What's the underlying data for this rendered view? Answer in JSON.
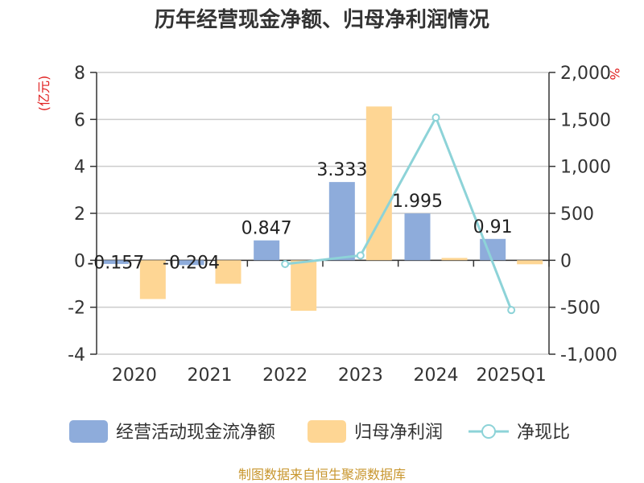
{
  "title": "历年经营现金净额、归母净利润情况",
  "source": "制图数据来自恒生聚源数据库",
  "chart_data": {
    "type": "bar",
    "categories": [
      "2020",
      "2021",
      "2022",
      "2023",
      "2024",
      "2025Q1"
    ],
    "series": [
      {
        "name": "经营活动现金流净额",
        "kind": "bar",
        "axis": "left",
        "color": "#8eacdb",
        "values": [
          -0.157,
          -0.204,
          0.847,
          3.333,
          1.995,
          0.91
        ],
        "labels": [
          "-0.157",
          "-0.204",
          "0.847",
          "3.333",
          "1.995",
          "0.91"
        ]
      },
      {
        "name": "归母净利润",
        "kind": "bar",
        "axis": "left",
        "color": "#fed694",
        "values": [
          -1.65,
          -1.0,
          -2.15,
          6.55,
          0.1,
          -0.17
        ]
      },
      {
        "name": "净现比",
        "kind": "line",
        "axis": "right",
        "color": "#8dd3d8",
        "values": [
          null,
          null,
          -40,
          51,
          1520,
          -530
        ]
      }
    ],
    "left_axis": {
      "unit": "(亿元)",
      "ylim": [
        -4,
        8
      ],
      "ticks": [
        -4,
        -2,
        0,
        2,
        4,
        6,
        8
      ],
      "tick_labels": [
        "-4",
        "-2",
        "0",
        "2",
        "4",
        "6",
        "8"
      ]
    },
    "right_axis": {
      "unit": "%",
      "ylim": [
        -1000,
        2000
      ],
      "ticks": [
        -1000,
        -500,
        0,
        500,
        1000,
        1500,
        2000
      ],
      "tick_labels": [
        "-1,000",
        "-500",
        "0",
        "500",
        "1,000",
        "1,500",
        "2,000"
      ]
    },
    "grid": true,
    "legend_position": "bottom"
  }
}
